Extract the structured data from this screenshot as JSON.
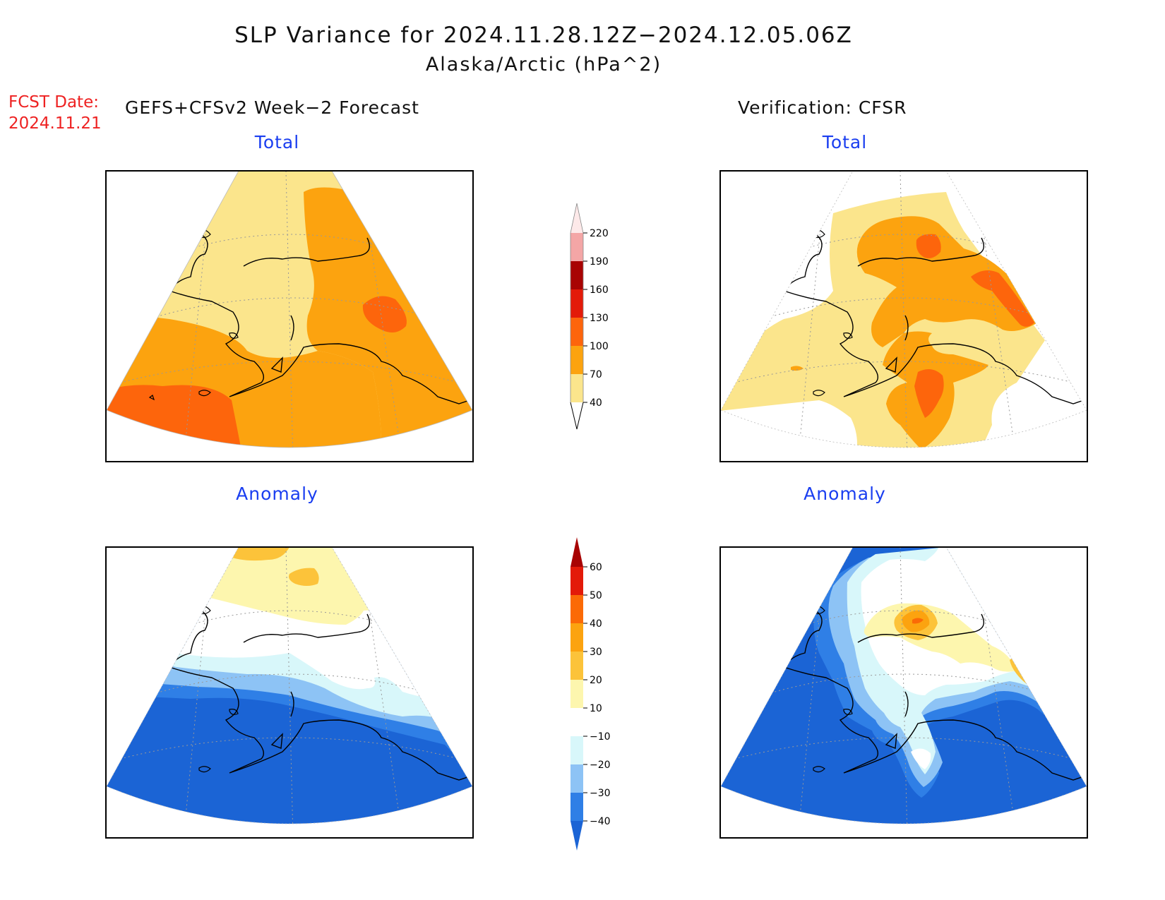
{
  "header": {
    "title": "SLP Variance for 2024.11.28.12Z−2024.12.05.06Z",
    "subtitle": "Alaska/Arctic (hPa^2)",
    "fcst_label": "FCST Date:",
    "fcst_date": "2024.11.21",
    "left_heading": "GEFS+CFSv2 Week−2 Forecast",
    "right_heading": "Verification: CFSR"
  },
  "panels": {
    "forecast_total": {
      "label": "Total"
    },
    "verification_total": {
      "label": "Total"
    },
    "forecast_anomaly": {
      "label": "Anomaly"
    },
    "verification_anomaly": {
      "label": "Anomaly"
    }
  },
  "total_colorbar": {
    "ticks": [
      "40",
      "70",
      "100",
      "130",
      "160",
      "190",
      "220"
    ],
    "colors": [
      "#fbe58c",
      "#fca30f",
      "#fd650c",
      "#e31a09",
      "#a80303",
      "#f4a6a6",
      "#fde9e9"
    ]
  },
  "anomaly_colorbar": {
    "ticks": [
      "−40",
      "−30",
      "−20",
      "−10",
      "10",
      "20",
      "30",
      "40",
      "50",
      "60"
    ],
    "colors": [
      "#1b64d5",
      "#2f7fe6",
      "#8dc3f5",
      "#d8f7fa",
      "#ffffff",
      "#fdf6ae",
      "#fcc33a",
      "#fca30f",
      "#fb6a06",
      "#e31a09",
      "#a80303"
    ]
  },
  "palette": {
    "total_c40": "#fbe58c",
    "total_c70": "#fca30f",
    "total_c100": "#fd650c",
    "anom_n40": "#1b64d5",
    "anom_n30": "#2f7fe6",
    "anom_n20": "#8dc3f5",
    "anom_n10": "#d8f7fa",
    "anom_p10": "#fdf6ae",
    "anom_p20": "#fcc33a",
    "anom_p30": "#fca30f",
    "anom_p40": "#fb6a06"
  }
}
